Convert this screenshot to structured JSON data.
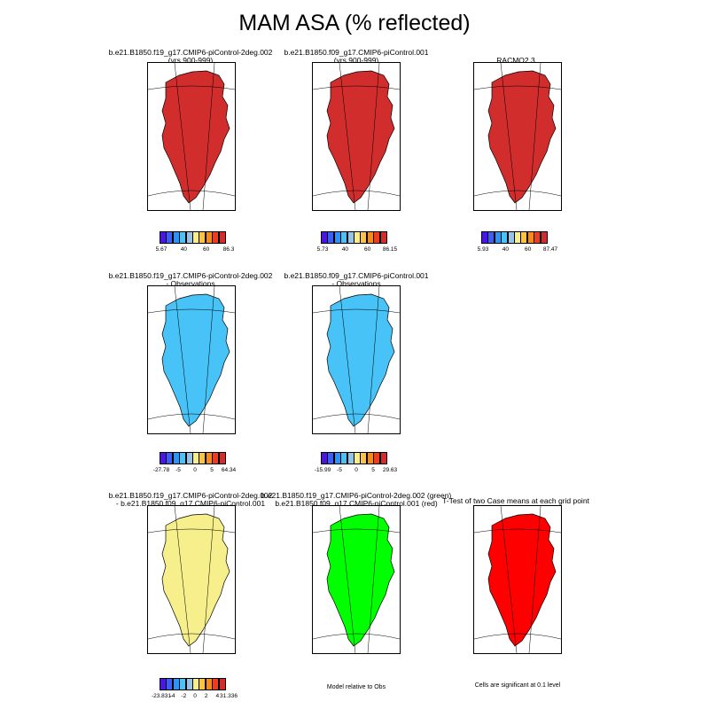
{
  "title": "MAM ASA (% reflected)",
  "colors": {
    "c1": "#4b15e8",
    "c2": "#3d5ef5",
    "c3": "#2f92f7",
    "c4": "#48c3f7",
    "c5": "#96c4e6",
    "c6": "#f6ef8b",
    "c7": "#fbc342",
    "c8": "#f98a19",
    "c9": "#ef3b1e",
    "c10": "#d22d2d",
    "green": "#00ff00",
    "red": "#ff0000"
  },
  "panels": [
    {
      "title1": "b.e21.B1850.f19_g17.CMIP6-piControl-2deg.002",
      "title2": "(yrs 900-999)",
      "fill": "c10",
      "cbar_labels": [
        "5.67",
        "40",
        "60",
        "86.3"
      ]
    },
    {
      "title1": "b.e21.B1850.f09_g17.CMIP6-piControl.001",
      "title2": "(yrs 900-999)",
      "fill": "c10",
      "cbar_labels": [
        "5.73",
        "40",
        "60",
        "86.15"
      ]
    },
    {
      "title1": "RACMO2.3",
      "title2": "",
      "fill": "c10",
      "cbar_labels": [
        "5.93",
        "40",
        "60",
        "87.47"
      ]
    },
    {
      "title1": "b.e21.B1850.f19_g17.CMIP6-piControl-2deg.002",
      "title2": "- Observations",
      "fill": "c4",
      "cbar_labels": [
        "-27.78",
        "-5",
        "0",
        "5",
        "64.34"
      ]
    },
    {
      "title1": "b.e21.B1850.f09_g17.CMIP6-piControl.001",
      "title2": "- Observations",
      "fill": "c4",
      "cbar_labels": [
        "-15.99",
        "-5",
        "0",
        "5",
        "29.63"
      ]
    },
    {
      "title1": "b.e21.B1850.f19_g17.CMIP6-piControl-2deg.002",
      "title2": "- b.e21.B1850.f09_g17.CMIP6-piControl.001",
      "fill": "c6",
      "cbar_labels": [
        "-23.831",
        "-4",
        "-2",
        "0",
        "2",
        "4",
        "31.336"
      ]
    },
    {
      "title1": "b.e21.B1850.f19_g17.CMIP6-piControl-2deg.002 (green)",
      "title2": "b.e21.B1850.f09_g17.CMIP6-piControl.001 (red)",
      "fill": "green"
    },
    {
      "title1": "T-Test of two Case means at each grid point",
      "title2": "",
      "fill": "red"
    }
  ],
  "notes": {
    "model_relative": "Model relative to Obs",
    "significance": "Cells are significant at 0.1 level"
  }
}
